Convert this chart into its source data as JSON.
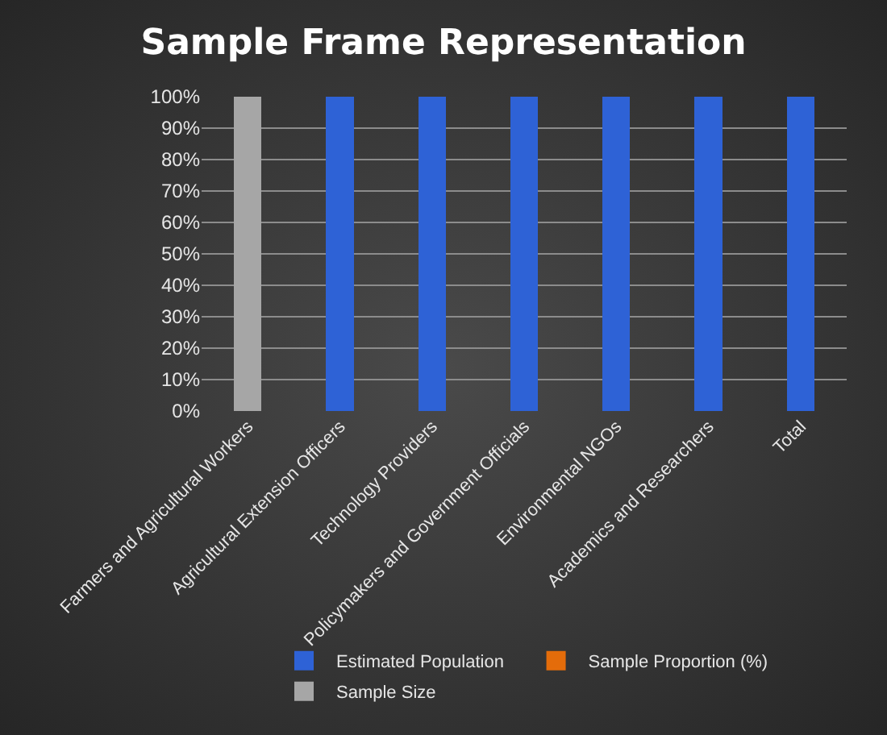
{
  "chart_data": {
    "type": "bar",
    "title": "Sample Frame Representation",
    "stacked": true,
    "categories": [
      "Farmers and Agricultural Workers",
      "Agricultural Extension Officers",
      "Technology Providers",
      "Policymakers and Government Officials",
      "Environmental NGOs",
      "Academics and Researchers",
      "Total"
    ],
    "series": [
      {
        "name": "Estimated Population",
        "color": "#2e62d6",
        "values": [
          0,
          100,
          100,
          100,
          100,
          100,
          100
        ]
      },
      {
        "name": "Sample Proportion (%)",
        "color": "#e46c0a",
        "values": [
          0,
          0,
          0,
          0,
          0,
          0,
          0
        ]
      },
      {
        "name": "Sample Size",
        "color": "#a6a6a6",
        "values": [
          100,
          0,
          0,
          0,
          0,
          0,
          0
        ]
      }
    ],
    "ylim": [
      0,
      100
    ],
    "yticks": [
      {
        "value": 0,
        "label": "0%"
      },
      {
        "value": 10,
        "label": "10%"
      },
      {
        "value": 20,
        "label": "20%"
      },
      {
        "value": 30,
        "label": "30%"
      },
      {
        "value": 40,
        "label": "40%"
      },
      {
        "value": 50,
        "label": "50%"
      },
      {
        "value": 60,
        "label": "60%"
      },
      {
        "value": 70,
        "label": "70%"
      },
      {
        "value": 80,
        "label": "80%"
      },
      {
        "value": 90,
        "label": "90%"
      },
      {
        "value": 100,
        "label": "100%"
      }
    ],
    "grid": "y",
    "legend": "bottom"
  }
}
